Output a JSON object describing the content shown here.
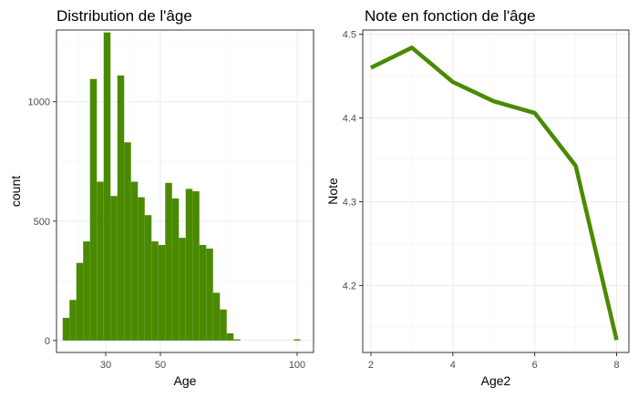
{
  "chart_data": [
    {
      "type": "bar",
      "title": "Distribution de l'âge",
      "xlabel": "Age",
      "ylabel": "count",
      "xlim": [
        12,
        106
      ],
      "ylim": [
        -50,
        1300
      ],
      "xticks": [
        30,
        50,
        100
      ],
      "yticks": [
        0,
        500,
        1000
      ],
      "grid": true,
      "bar_color": "#4a8a00",
      "bins": [
        {
          "x": 15.5,
          "value": 95
        },
        {
          "x": 18.0,
          "value": 170
        },
        {
          "x": 20.5,
          "value": 325
        },
        {
          "x": 23.0,
          "value": 415
        },
        {
          "x": 25.5,
          "value": 1095
        },
        {
          "x": 28.0,
          "value": 665
        },
        {
          "x": 30.5,
          "value": 1290
        },
        {
          "x": 33.0,
          "value": 605
        },
        {
          "x": 35.5,
          "value": 1110
        },
        {
          "x": 38.0,
          "value": 830
        },
        {
          "x": 40.5,
          "value": 665
        },
        {
          "x": 43.0,
          "value": 600
        },
        {
          "x": 45.5,
          "value": 525
        },
        {
          "x": 48.0,
          "value": 415
        },
        {
          "x": 50.5,
          "value": 400
        },
        {
          "x": 53.0,
          "value": 660
        },
        {
          "x": 55.5,
          "value": 595
        },
        {
          "x": 58.0,
          "value": 430
        },
        {
          "x": 60.5,
          "value": 635
        },
        {
          "x": 63.0,
          "value": 625
        },
        {
          "x": 65.5,
          "value": 400
        },
        {
          "x": 68.0,
          "value": 385
        },
        {
          "x": 70.5,
          "value": 200
        },
        {
          "x": 73.0,
          "value": 130
        },
        {
          "x": 75.5,
          "value": 30
        },
        {
          "x": 78.0,
          "value": 5
        },
        {
          "x": 100.0,
          "value": 5
        }
      ]
    },
    {
      "type": "line",
      "title": "Note en fonction de l'âge",
      "xlabel": "Age2",
      "ylabel": "Note",
      "xlim": [
        1.8,
        8.3
      ],
      "ylim": [
        4.12,
        4.505
      ],
      "xticks": [
        2,
        4,
        6,
        8
      ],
      "yticks": [
        4.2,
        4.3,
        4.4,
        4.5
      ],
      "grid": true,
      "line_color": "#4a8a00",
      "x": [
        2,
        3,
        4,
        5,
        6,
        7,
        8
      ],
      "y": [
        4.46,
        4.484,
        4.443,
        4.42,
        4.406,
        4.343,
        4.135
      ]
    }
  ]
}
